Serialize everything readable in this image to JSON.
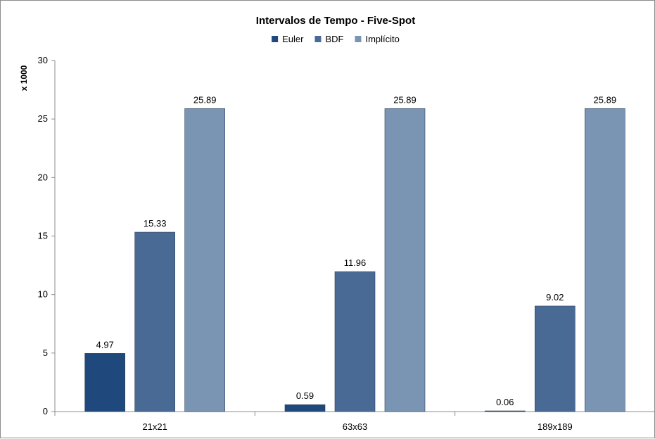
{
  "chart_data": {
    "type": "bar",
    "title": "Intervalos de Tempo - Five-Spot",
    "ylabel": "x 1000",
    "xlabel": "",
    "categories": [
      "21x21",
      "63x63",
      "189x189"
    ],
    "series": [
      {
        "name": "Euler",
        "color": "#1f497d",
        "values": [
          4.97,
          0.59,
          0.06
        ],
        "labels": [
          "4.97",
          "0.59",
          "0.06"
        ]
      },
      {
        "name": "BDF",
        "color": "#4a6a96",
        "values": [
          15.33,
          11.96,
          9.02
        ],
        "labels": [
          "15.33",
          "11.96",
          "9.02"
        ]
      },
      {
        "name": "Implícito",
        "color": "#7a95b4",
        "values": [
          25.89,
          25.89,
          25.89
        ],
        "labels": [
          "25.89",
          "25.89",
          "25.89"
        ]
      }
    ],
    "ylim": [
      0,
      30
    ],
    "yticks": [
      "0",
      "5",
      "10",
      "15",
      "20",
      "25",
      "30"
    ],
    "legend_position": "top",
    "grid": false
  }
}
